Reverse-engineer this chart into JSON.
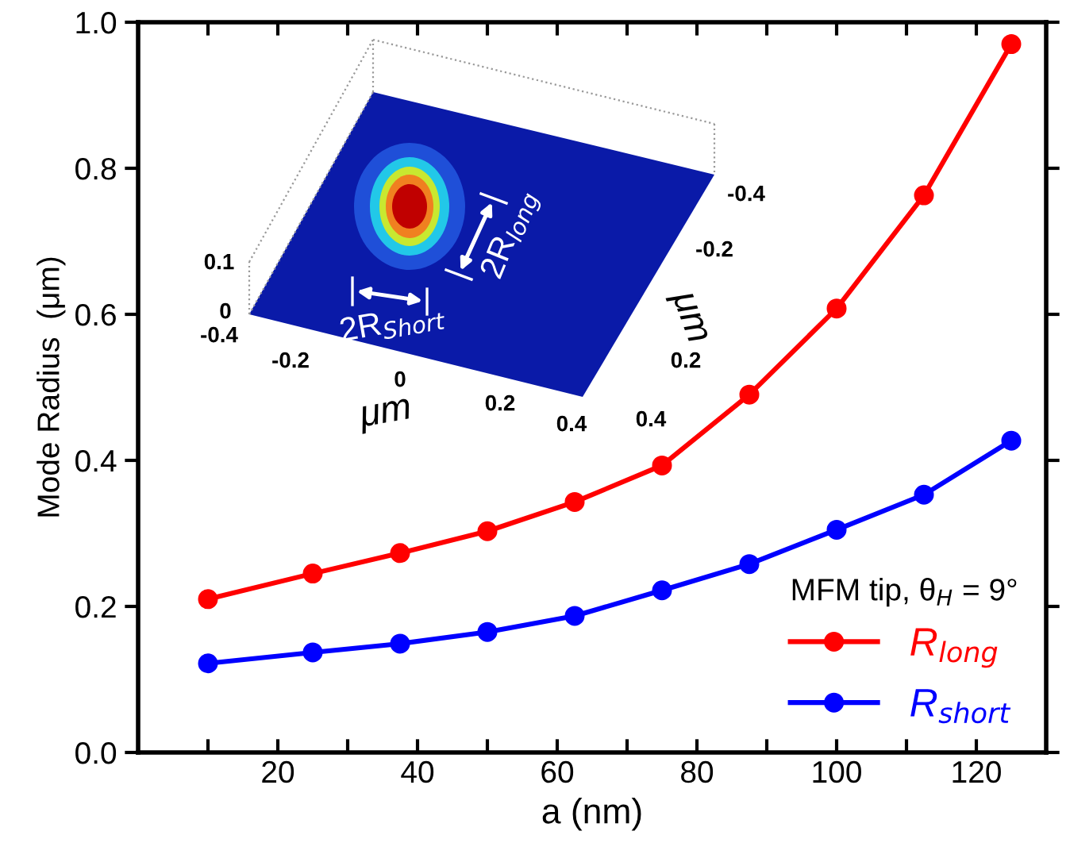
{
  "chart_data": {
    "type": "line",
    "xlabel": "a (nm)",
    "ylabel": "Mode Radius  (μm)",
    "legend_title": "MFM tip, θ$_{H}$ = 9°",
    "x": [
      10,
      25,
      37.5,
      50,
      62.5,
      75,
      87.5,
      100,
      112.5,
      125
    ],
    "series": [
      {
        "name": "R$_{long}$",
        "color": "#ff0000",
        "values": [
          0.21,
          0.245,
          0.273,
          0.303,
          0.343,
          0.393,
          0.49,
          0.608,
          0.763,
          0.97
        ]
      },
      {
        "name": "R$_{short}$",
        "color": "#0000ff",
        "values": [
          0.122,
          0.137,
          0.149,
          0.165,
          0.187,
          0.222,
          0.258,
          0.305,
          0.353,
          0.427
        ]
      }
    ],
    "xlim": [
      0,
      130
    ],
    "xticks": [
      {
        "value": 10,
        "label": null
      },
      20,
      {
        "value": 30,
        "label": null
      },
      40,
      {
        "value": 50,
        "label": null
      },
      60,
      {
        "value": 70,
        "label": null
      },
      80,
      {
        "value": 90,
        "label": null
      },
      100,
      {
        "value": 110,
        "label": null
      },
      120
    ],
    "ylim": [
      0,
      1
    ],
    "yticks": [
      {
        "value": 0,
        "label": "0.0"
      },
      0.2,
      0.4,
      0.6,
      0.8,
      {
        "value": 1,
        "label": "1.0"
      }
    ],
    "marker": "circle",
    "line_style": "solid",
    "grid": false,
    "legend": "bottom right",
    "annotations": [
      "0.1",
      "0",
      "-0.4",
      "-0.2",
      "0",
      "0.2",
      "0.4",
      "μm",
      "-0.4",
      "-0.2",
      "0.2",
      "0.4",
      "μm",
      "2R$_{Short}$",
      "2R$_{long}$"
    ]
  }
}
